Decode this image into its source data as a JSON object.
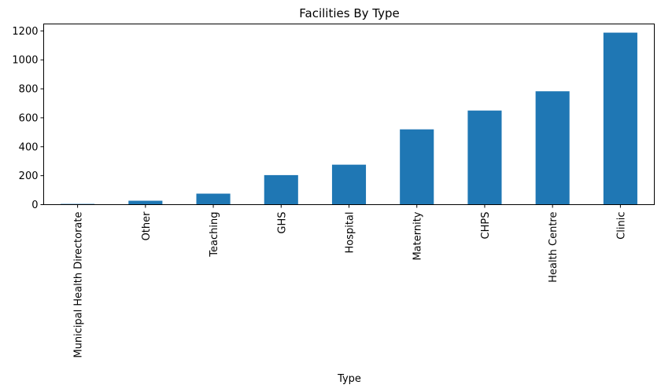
{
  "chart_data": {
    "type": "bar",
    "title": "Facilities By Type",
    "xlabel": "Type",
    "ylabel": "",
    "categories": [
      "Municipal Health Directorate",
      "Other",
      "Teaching",
      "GHS",
      "Hospital",
      "Maternity",
      "CHPS",
      "Health Centre",
      "Clinic"
    ],
    "values": [
      5,
      27,
      76,
      204,
      276,
      520,
      650,
      783,
      1188
    ],
    "ylim": [
      0,
      1248
    ],
    "yticks": [
      0,
      200,
      400,
      600,
      800,
      1000,
      1200
    ],
    "bar_color": "#1f77b4",
    "grid": false,
    "legend": "none"
  }
}
